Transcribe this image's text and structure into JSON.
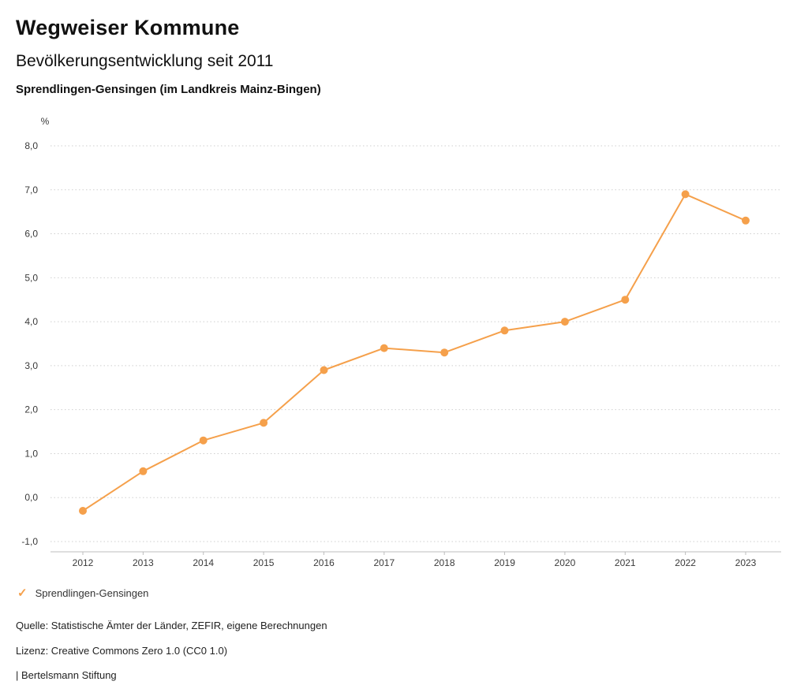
{
  "header": {
    "title": "Wegweiser Kommune",
    "subtitle": "Bevölkerungsentwicklung seit 2011",
    "region": "Sprendlingen-Gensingen (im Landkreis Mainz-Bingen)"
  },
  "chart_data": {
    "type": "line",
    "title": "Bevölkerungsentwicklung seit 2011",
    "unit_label": "%",
    "x": [
      "2012",
      "2013",
      "2014",
      "2015",
      "2016",
      "2017",
      "2018",
      "2019",
      "2020",
      "2021",
      "2022",
      "2023"
    ],
    "series": [
      {
        "name": "Sprendlingen-Gensingen",
        "values": [
          -0.3,
          0.6,
          1.3,
          1.7,
          2.9,
          3.4,
          3.3,
          3.8,
          4.0,
          4.5,
          6.9,
          6.3
        ],
        "color": "#F5A04B"
      }
    ],
    "ylim": [
      -1.0,
      8.0
    ],
    "ytick_step": 1.0,
    "ytick_labels": [
      "8,0",
      "7,0",
      "6,0",
      "5,0",
      "4,0",
      "3,0",
      "2,0",
      "1,0",
      "0,0",
      "-1,0"
    ],
    "grid": "dotted-horizontal",
    "legend_position": "bottom-left",
    "colors": {
      "accent": "#F5A04B",
      "grid": "#cfcfcf",
      "axis": "#bdbdbd",
      "text": "#3a3a3a"
    }
  },
  "legend": {
    "items": [
      {
        "label": "Sprendlingen-Gensingen",
        "marker": "check",
        "color": "#F5A04B"
      }
    ]
  },
  "footer": {
    "source": "Quelle: Statistische Ämter der Länder, ZEFIR, eigene Berechnungen",
    "license": "Lizenz: Creative Commons Zero 1.0 (CC0 1.0)",
    "attribution": "| Bertelsmann Stiftung"
  }
}
